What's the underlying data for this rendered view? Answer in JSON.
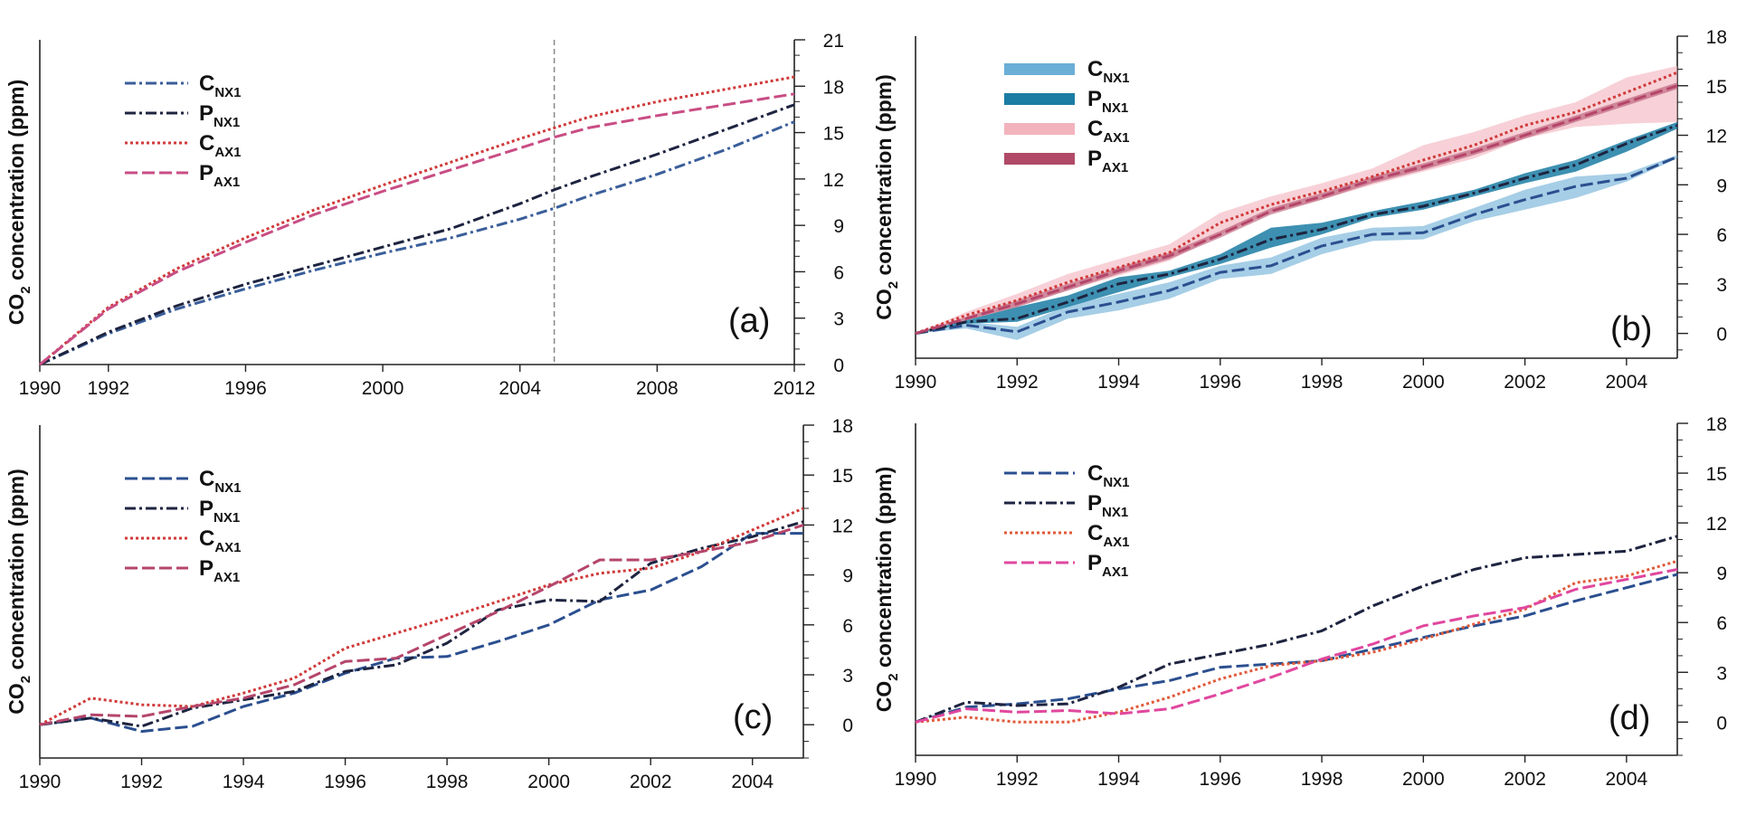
{
  "chart_data": [
    {
      "type": "line",
      "panel_label": "(a)",
      "ylabel_main": "CO",
      "ylabel_sub": "2",
      "ylabel_rest": " concentration (ppm)",
      "xlim": [
        1990,
        2012
      ],
      "ylim": [
        0,
        21
      ],
      "x_ticks": [
        "1990",
        "1992",
        "1996",
        "2000",
        "2004",
        "2008",
        "2012"
      ],
      "y_ticks": [
        "0",
        "3",
        "6",
        "9",
        "12",
        "15",
        "18",
        "21"
      ],
      "vline_x": 2005,
      "legend_position": "top-left",
      "series": [
        {
          "name_main": "C",
          "name_sub": "NX1",
          "color": "#3a5e9a",
          "dash": "12 4 3 4",
          "x": [
            1990,
            1992,
            1994,
            1996,
            1998,
            2000,
            2002,
            2004,
            2005,
            2006,
            2008,
            2010,
            2012
          ],
          "values": [
            0,
            2.0,
            3.6,
            4.9,
            6.1,
            7.2,
            8.2,
            9.4,
            10.1,
            10.9,
            12.3,
            13.9,
            15.7
          ]
        },
        {
          "name_main": "P",
          "name_sub": "NX1",
          "color": "#1e2440",
          "dash": "12 4 3 4",
          "x": [
            1990,
            1992,
            1994,
            1996,
            1998,
            2000,
            2002,
            2004,
            2005,
            2006,
            2008,
            2010,
            2012
          ],
          "values": [
            0,
            2.1,
            3.8,
            5.2,
            6.4,
            7.6,
            8.8,
            10.4,
            11.3,
            12.1,
            13.6,
            15.2,
            16.8
          ]
        },
        {
          "name_main": "C",
          "name_sub": "AX1",
          "color": "#d03a3a",
          "dash": "3 3",
          "x": [
            1990,
            1992,
            1994,
            1996,
            1998,
            2000,
            2002,
            2004,
            2005,
            2006,
            2008,
            2010,
            2012
          ],
          "values": [
            0,
            3.7,
            6.2,
            8.2,
            10.0,
            11.6,
            13.1,
            14.6,
            15.3,
            16.0,
            17.0,
            17.8,
            18.6
          ]
        },
        {
          "name_main": "P",
          "name_sub": "AX1",
          "color": "#c94d84",
          "dash": "14 5",
          "x": [
            1990,
            1992,
            1994,
            1996,
            1998,
            2000,
            2002,
            2004,
            2005,
            2006,
            2008,
            2010,
            2012
          ],
          "values": [
            0,
            3.6,
            6.0,
            7.9,
            9.7,
            11.2,
            12.6,
            14.0,
            14.7,
            15.3,
            16.1,
            16.8,
            17.5
          ]
        }
      ]
    },
    {
      "type": "line",
      "panel_label": "(b)",
      "ylabel_main": "CO",
      "ylabel_sub": "2",
      "ylabel_rest": " concentration (ppm)",
      "xlim": [
        1990,
        2005
      ],
      "ylim": [
        -1.5,
        18
      ],
      "x_ticks": [
        "1990",
        "1992",
        "1994",
        "1996",
        "1998",
        "2000",
        "2002",
        "2004"
      ],
      "y_ticks": [
        "0",
        "3",
        "6",
        "9",
        "12",
        "15",
        "18"
      ],
      "legend_position": "top-left",
      "legend_style": "band",
      "series": [
        {
          "name_main": "C",
          "name_sub": "NX1",
          "color": "#2b4f8f",
          "dash": "14 5",
          "band_color": "#6baed6",
          "x": [
            1990,
            1991,
            1992,
            1993,
            1994,
            1995,
            1996,
            1997,
            1998,
            1999,
            2000,
            2001,
            2002,
            2003,
            2004,
            2005
          ],
          "values": [
            0,
            0.5,
            0.1,
            1.3,
            1.9,
            2.6,
            3.7,
            4.1,
            5.3,
            6.0,
            6.1,
            7.2,
            8.1,
            8.9,
            9.4,
            10.7
          ],
          "lower": [
            0,
            0.3,
            -0.4,
            0.9,
            1.4,
            2.1,
            3.3,
            3.6,
            4.8,
            5.6,
            5.7,
            6.8,
            7.5,
            8.2,
            9.2,
            10.6
          ],
          "upper": [
            0,
            0.7,
            0.4,
            1.7,
            2.4,
            3.1,
            4.1,
            4.6,
            5.8,
            6.4,
            6.5,
            7.6,
            8.7,
            9.5,
            9.7,
            10.8
          ]
        },
        {
          "name_main": "P",
          "name_sub": "NX1",
          "color": "#1e2440",
          "dash": "12 4 3 4",
          "band_color": "#1b7ca3",
          "x": [
            1990,
            1991,
            1992,
            1993,
            1994,
            1995,
            1996,
            1997,
            1998,
            1999,
            2000,
            2001,
            2002,
            2003,
            2004,
            2005
          ],
          "values": [
            0,
            0.7,
            0.9,
            1.9,
            3.0,
            3.6,
            4.5,
            5.7,
            6.3,
            7.2,
            7.7,
            8.5,
            9.4,
            10.2,
            11.5,
            12.6
          ],
          "lower": [
            0,
            0.6,
            0.7,
            1.6,
            2.5,
            3.4,
            4.2,
            5.2,
            6.0,
            7.0,
            7.5,
            8.3,
            9.1,
            9.8,
            11.0,
            12.4
          ],
          "upper": [
            0,
            0.8,
            1.6,
            2.3,
            3.4,
            3.8,
            4.8,
            6.4,
            6.7,
            7.4,
            8.0,
            8.7,
            9.7,
            10.5,
            11.7,
            12.8
          ]
        },
        {
          "name_main": "C",
          "name_sub": "AX1",
          "color": "#d03a3a",
          "dash": "3 3",
          "band_color": "#f2b3bd",
          "x": [
            1990,
            1991,
            1992,
            1993,
            1994,
            1995,
            1996,
            1997,
            1998,
            1999,
            2000,
            2001,
            2002,
            2003,
            2004,
            2005
          ],
          "values": [
            0,
            1.1,
            2.0,
            3.1,
            4.0,
            4.9,
            6.7,
            7.8,
            8.6,
            9.5,
            10.5,
            11.4,
            12.6,
            13.4,
            14.6,
            15.8
          ],
          "lower": [
            0,
            0.8,
            1.6,
            2.6,
            3.5,
            4.4,
            6.0,
            7.3,
            8.1,
            9.0,
            9.8,
            10.6,
            11.8,
            12.5,
            12.7,
            12.8
          ],
          "upper": [
            0,
            1.3,
            2.4,
            3.6,
            4.5,
            5.4,
            7.3,
            8.3,
            9.1,
            10.0,
            11.4,
            12.2,
            13.2,
            14.0,
            15.5,
            16.2
          ]
        },
        {
          "name_main": "P",
          "name_sub": "AX1",
          "color": "#b5456a",
          "dash": "14 5",
          "band_color": "#b04a68",
          "x": [
            1990,
            1991,
            1992,
            1993,
            1994,
            1995,
            1996,
            1997,
            1998,
            1999,
            2000,
            2001,
            2002,
            2003,
            2004,
            2005
          ],
          "values": [
            0,
            0.9,
            1.8,
            2.8,
            3.8,
            4.7,
            6.0,
            7.4,
            8.3,
            9.3,
            10.1,
            11.0,
            12.0,
            13.0,
            14.0,
            15.0
          ],
          "lower": [
            0,
            0.8,
            1.6,
            2.6,
            3.6,
            4.5,
            5.8,
            7.2,
            8.1,
            9.1,
            9.9,
            10.8,
            11.8,
            12.8,
            13.8,
            14.8
          ],
          "upper": [
            0,
            1.0,
            2.0,
            3.0,
            4.0,
            4.9,
            6.2,
            7.6,
            8.5,
            9.5,
            10.3,
            11.2,
            12.2,
            13.2,
            14.2,
            15.2
          ]
        }
      ]
    },
    {
      "type": "line",
      "panel_label": "(c)",
      "ylabel_main": "CO",
      "ylabel_sub": "2",
      "ylabel_rest": " concentration (ppm)",
      "xlim": [
        1990,
        2005
      ],
      "ylim": [
        -2,
        18
      ],
      "x_ticks": [
        "1990",
        "1992",
        "1994",
        "1996",
        "1998",
        "2000",
        "2002",
        "2004"
      ],
      "y_ticks": [
        "0",
        "3",
        "6",
        "9",
        "12",
        "15",
        "18"
      ],
      "legend_position": "top-left",
      "series": [
        {
          "name_main": "C",
          "name_sub": "NX1",
          "color": "#2b4f8f",
          "dash": "14 5",
          "x": [
            1990,
            1991,
            1992,
            1993,
            1994,
            1995,
            1996,
            1997,
            1998,
            1999,
            2000,
            2001,
            2002,
            2003,
            2004,
            2005
          ],
          "values": [
            0,
            0.4,
            -0.4,
            -0.1,
            1.1,
            1.9,
            3.1,
            4.0,
            4.1,
            5.0,
            6.0,
            7.5,
            8.1,
            9.5,
            11.5,
            11.5
          ]
        },
        {
          "name_main": "P",
          "name_sub": "NX1",
          "color": "#1e2440",
          "dash": "12 4 3 4",
          "x": [
            1990,
            1991,
            1992,
            1993,
            1994,
            1995,
            1996,
            1997,
            1998,
            1999,
            2000,
            2001,
            2002,
            2003,
            2004,
            2005
          ],
          "values": [
            0,
            0.4,
            -0.1,
            1.0,
            1.5,
            2.0,
            3.2,
            3.6,
            4.9,
            6.9,
            7.5,
            7.4,
            9.7,
            10.6,
            11.3,
            12.2
          ]
        },
        {
          "name_main": "C",
          "name_sub": "AX1",
          "color": "#d03a3a",
          "dash": "3 3",
          "x": [
            1990,
            1991,
            1992,
            1993,
            1994,
            1995,
            1996,
            1997,
            1998,
            1999,
            2000,
            2001,
            2002,
            2003,
            2004,
            2005
          ],
          "values": [
            0,
            1.6,
            1.2,
            1.1,
            1.9,
            2.8,
            4.6,
            5.5,
            6.4,
            7.4,
            8.4,
            9.1,
            9.4,
            10.4,
            11.7,
            13.0
          ]
        },
        {
          "name_main": "P",
          "name_sub": "AX1",
          "color": "#b5456a",
          "dash": "14 5",
          "x": [
            1990,
            1991,
            1992,
            1993,
            1994,
            1995,
            1996,
            1997,
            1998,
            1999,
            2000,
            2001,
            2002,
            2003,
            2004,
            2005
          ],
          "values": [
            0,
            0.6,
            0.5,
            1.1,
            1.6,
            2.4,
            3.8,
            4.0,
            5.4,
            6.8,
            8.3,
            9.9,
            9.9,
            10.4,
            11.0,
            12.0
          ]
        }
      ]
    },
    {
      "type": "line",
      "panel_label": "(d)",
      "ylabel_main": "CO",
      "ylabel_sub": "2",
      "ylabel_rest": " concentration (ppm)",
      "xlim": [
        1990,
        2005
      ],
      "ylim": [
        -2,
        18
      ],
      "x_ticks": [
        "1990",
        "1992",
        "1994",
        "1996",
        "1998",
        "2000",
        "2002",
        "2004"
      ],
      "y_ticks": [
        "0",
        "3",
        "6",
        "9",
        "12",
        "15",
        "18"
      ],
      "legend_position": "top-left",
      "series": [
        {
          "name_main": "C",
          "name_sub": "NX1",
          "color": "#2b4f8f",
          "dash": "14 5",
          "x": [
            1990,
            1991,
            1992,
            1993,
            1994,
            1995,
            1996,
            1997,
            1998,
            1999,
            2000,
            2001,
            2002,
            2003,
            2004,
            2005
          ],
          "values": [
            0,
            0.9,
            1.1,
            1.4,
            2.0,
            2.5,
            3.3,
            3.5,
            3.7,
            4.4,
            5.1,
            5.8,
            6.4,
            7.3,
            8.1,
            8.9
          ]
        },
        {
          "name_main": "P",
          "name_sub": "NX1",
          "color": "#1e2440",
          "dash": "12 4 3 4",
          "x": [
            1990,
            1991,
            1992,
            1993,
            1994,
            1995,
            1996,
            1997,
            1998,
            1999,
            2000,
            2001,
            2002,
            2003,
            2004,
            2005
          ],
          "values": [
            0,
            1.2,
            1.0,
            1.1,
            2.1,
            3.5,
            4.1,
            4.7,
            5.5,
            7.0,
            8.2,
            9.2,
            9.9,
            10.1,
            10.3,
            11.2
          ]
        },
        {
          "name_main": "C",
          "name_sub": "AX1",
          "color": "#e05a3a",
          "dash": "3 3",
          "x": [
            1990,
            1991,
            1992,
            1993,
            1994,
            1995,
            1996,
            1997,
            1998,
            1999,
            2000,
            2001,
            2002,
            2003,
            2004,
            2005
          ],
          "values": [
            0,
            0.3,
            0.0,
            0.0,
            0.6,
            1.5,
            2.6,
            3.4,
            3.7,
            4.2,
            5.0,
            5.9,
            6.8,
            8.4,
            8.8,
            9.7
          ]
        },
        {
          "name_main": "P",
          "name_sub": "AX1",
          "color": "#e0479e",
          "dash": "14 5",
          "x": [
            1990,
            1991,
            1992,
            1993,
            1994,
            1995,
            1996,
            1997,
            1998,
            1999,
            2000,
            2001,
            2002,
            2003,
            2004,
            2005
          ],
          "values": [
            0,
            0.8,
            0.6,
            0.7,
            0.5,
            0.8,
            1.7,
            2.7,
            3.8,
            4.7,
            5.8,
            6.4,
            6.9,
            8.0,
            8.6,
            9.2
          ]
        }
      ]
    }
  ]
}
